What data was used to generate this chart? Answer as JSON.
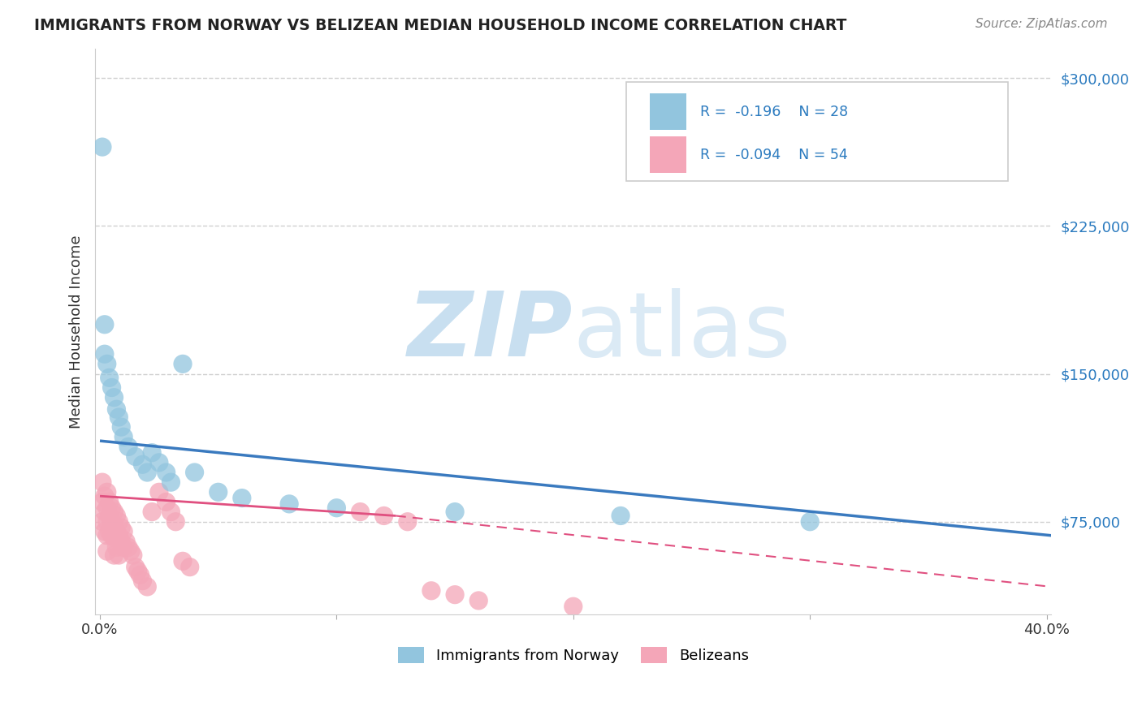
{
  "title": "IMMIGRANTS FROM NORWAY VS BELIZEAN MEDIAN HOUSEHOLD INCOME CORRELATION CHART",
  "source": "Source: ZipAtlas.com",
  "ylabel": "Median Household Income",
  "xlim": [
    -0.002,
    0.402
  ],
  "ylim": [
    28000,
    315000
  ],
  "yticks": [
    75000,
    150000,
    225000,
    300000
  ],
  "ytick_labels": [
    "$75,000",
    "$150,000",
    "$225,000",
    "$300,000"
  ],
  "xticks": [
    0.0,
    0.1,
    0.2,
    0.3,
    0.4
  ],
  "xtick_labels": [
    "0.0%",
    "",
    "",
    "",
    "40.0%"
  ],
  "background_color": "#ffffff",
  "grid_color": "#d0d0d0",
  "blue_R": "-0.196",
  "blue_N": "28",
  "pink_R": "-0.094",
  "pink_N": "54",
  "legend_blue_label": "Immigrants from Norway",
  "legend_pink_label": "Belizeans",
  "blue_color": "#92c5de",
  "pink_color": "#f4a6b8",
  "blue_line_color": "#3a7abf",
  "pink_line_color": "#e05080",
  "blue_line_x0": 0.0,
  "blue_line_y0": 116000,
  "blue_line_x1": 0.402,
  "blue_line_y1": 68000,
  "pink_line_solid_x0": 0.0,
  "pink_line_solid_y0": 88000,
  "pink_line_solid_x1": 0.125,
  "pink_line_solid_y1": 78000,
  "pink_line_dash_x0": 0.125,
  "pink_line_dash_y0": 78000,
  "pink_line_dash_x1": 0.402,
  "pink_line_dash_y1": 42000,
  "norway_x": [
    0.001,
    0.002,
    0.002,
    0.003,
    0.004,
    0.005,
    0.006,
    0.007,
    0.008,
    0.009,
    0.01,
    0.012,
    0.015,
    0.018,
    0.02,
    0.022,
    0.025,
    0.028,
    0.03,
    0.035,
    0.04,
    0.05,
    0.06,
    0.08,
    0.1,
    0.15,
    0.22,
    0.3
  ],
  "norway_y": [
    265000,
    175000,
    160000,
    155000,
    148000,
    143000,
    138000,
    132000,
    128000,
    123000,
    118000,
    113000,
    108000,
    104000,
    100000,
    110000,
    105000,
    100000,
    95000,
    155000,
    100000,
    90000,
    87000,
    84000,
    82000,
    80000,
    78000,
    75000
  ],
  "belize_x": [
    0.001,
    0.001,
    0.001,
    0.002,
    0.002,
    0.002,
    0.003,
    0.003,
    0.003,
    0.003,
    0.003,
    0.004,
    0.004,
    0.004,
    0.005,
    0.005,
    0.005,
    0.006,
    0.006,
    0.006,
    0.006,
    0.007,
    0.007,
    0.007,
    0.008,
    0.008,
    0.008,
    0.009,
    0.009,
    0.01,
    0.01,
    0.011,
    0.012,
    0.013,
    0.014,
    0.015,
    0.016,
    0.017,
    0.018,
    0.02,
    0.022,
    0.025,
    0.028,
    0.03,
    0.032,
    0.035,
    0.038,
    0.11,
    0.12,
    0.13,
    0.14,
    0.15,
    0.16,
    0.2
  ],
  "belize_y": [
    95000,
    85000,
    75000,
    88000,
    80000,
    70000,
    90000,
    82000,
    75000,
    68000,
    60000,
    85000,
    78000,
    70000,
    82000,
    75000,
    68000,
    80000,
    73000,
    67000,
    58000,
    78000,
    70000,
    62000,
    75000,
    68000,
    58000,
    72000,
    65000,
    70000,
    62000,
    65000,
    62000,
    60000,
    58000,
    52000,
    50000,
    48000,
    45000,
    42000,
    80000,
    90000,
    85000,
    80000,
    75000,
    55000,
    52000,
    80000,
    78000,
    75000,
    40000,
    38000,
    35000,
    32000
  ]
}
